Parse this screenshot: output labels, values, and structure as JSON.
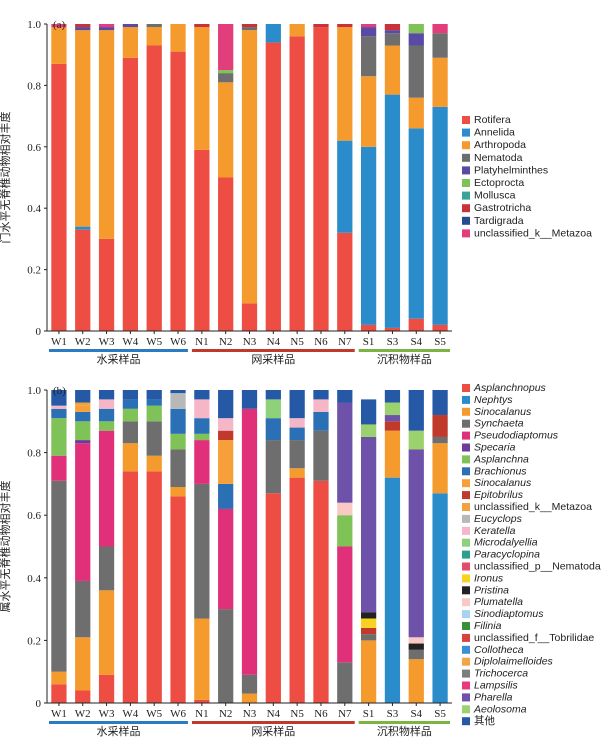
{
  "chart_data": [
    {
      "type": "bar",
      "stacked": true,
      "panel_label": "(a)",
      "ylabel": "门水平无脊椎动物相对丰度",
      "ylim": [
        0,
        1.0
      ],
      "yticks": [
        "0",
        "0.2",
        "0.4",
        "0.6",
        "0.8",
        "1.0"
      ],
      "categories": [
        "W1",
        "W2",
        "W3",
        "W4",
        "W5",
        "W6",
        "N1",
        "N2",
        "N3",
        "N4",
        "N5",
        "N6",
        "N7",
        "S1",
        "S3",
        "S4",
        "S5"
      ],
      "groups": [
        {
          "label": "水采样品",
          "color": "#2a7bbf",
          "span": [
            0,
            5
          ]
        },
        {
          "label": "网采样品",
          "color": "#c0392b",
          "span": [
            6,
            12
          ]
        },
        {
          "label": "沉积物样品",
          "color": "#7cb342",
          "span": [
            13,
            16
          ]
        }
      ],
      "series": [
        {
          "name": "Rotifera",
          "color": "#ee4d43",
          "values": [
            0.87,
            0.33,
            0.3,
            0.89,
            0.93,
            0.91,
            0.59,
            0.5,
            0.09,
            0.94,
            0.96,
            0.99,
            0.32,
            0.02,
            0.01,
            0.04,
            0.02
          ]
        },
        {
          "name": "Annelida",
          "color": "#2b8ccc",
          "values": [
            0.0,
            0.01,
            0.0,
            0.0,
            0.0,
            0.0,
            0.0,
            0.0,
            0.0,
            0.06,
            0.0,
            0.0,
            0.3,
            0.58,
            0.76,
            0.62,
            0.71
          ]
        },
        {
          "name": "Arthropoda",
          "color": "#f59a2c",
          "values": [
            0.12,
            0.64,
            0.68,
            0.1,
            0.06,
            0.09,
            0.4,
            0.31,
            0.89,
            0.0,
            0.04,
            0.0,
            0.37,
            0.23,
            0.16,
            0.1,
            0.16
          ]
        },
        {
          "name": "Nematoda",
          "color": "#6e6e6e",
          "values": [
            0.0,
            0.0,
            0.0,
            0.0,
            0.01,
            0.0,
            0.0,
            0.03,
            0.01,
            0.0,
            0.0,
            0.0,
            0.0,
            0.13,
            0.04,
            0.17,
            0.08
          ]
        },
        {
          "name": "Platyhelminthes",
          "color": "#5b4aa5",
          "values": [
            0.0,
            0.01,
            0.01,
            0.01,
            0.0,
            0.0,
            0.0,
            0.0,
            0.0,
            0.0,
            0.0,
            0.0,
            0.0,
            0.03,
            0.01,
            0.04,
            0.0
          ]
        },
        {
          "name": "Ectoprocta",
          "color": "#7fc257",
          "values": [
            0.0,
            0.0,
            0.0,
            0.0,
            0.0,
            0.0,
            0.0,
            0.01,
            0.0,
            0.0,
            0.0,
            0.0,
            0.0,
            0.0,
            0.0,
            0.03,
            0.0
          ]
        },
        {
          "name": "Mollusca",
          "color": "#3aa39a",
          "values": [
            0.0,
            0.0,
            0.0,
            0.0,
            0.0,
            0.0,
            0.0,
            0.0,
            0.0,
            0.0,
            0.0,
            0.0,
            0.0,
            0.0,
            0.0,
            0.0,
            0.0
          ]
        },
        {
          "name": "Gastrotricha",
          "color": "#c8333a",
          "values": [
            0.0,
            0.01,
            0.0,
            0.0,
            0.0,
            0.0,
            0.01,
            0.0,
            0.01,
            0.0,
            0.0,
            0.01,
            0.01,
            0.0,
            0.02,
            0.0,
            0.0
          ]
        },
        {
          "name": "Tardigrada",
          "color": "#244c8f",
          "values": [
            0.0,
            0.0,
            0.0,
            0.0,
            0.0,
            0.0,
            0.0,
            0.0,
            0.0,
            0.0,
            0.0,
            0.0,
            0.0,
            0.0,
            0.0,
            0.0,
            0.0
          ]
        },
        {
          "name": "unclassified_k__Metazoa",
          "color": "#e23e7b",
          "values": [
            0.01,
            0.0,
            0.01,
            0.0,
            0.0,
            0.0,
            0.0,
            0.15,
            0.0,
            0.0,
            0.0,
            0.0,
            0.0,
            0.01,
            0.0,
            0.0,
            0.03
          ]
        }
      ]
    },
    {
      "type": "bar",
      "stacked": true,
      "panel_label": "(b)",
      "ylabel": "属水平无脊椎动物相对丰度",
      "ylim": [
        0,
        1.0
      ],
      "yticks": [
        "0",
        "0.2",
        "0.4",
        "0.6",
        "0.8",
        "1.0"
      ],
      "categories": [
        "W1",
        "W2",
        "W3",
        "W4",
        "W5",
        "W6",
        "N1",
        "N2",
        "N3",
        "N4",
        "N5",
        "N6",
        "N7",
        "S1",
        "S3",
        "S4",
        "S5"
      ],
      "groups": [
        {
          "label": "水采样品",
          "color": "#2a7bbf",
          "span": [
            0,
            5
          ]
        },
        {
          "label": "网采样品",
          "color": "#c0392b",
          "span": [
            6,
            12
          ]
        },
        {
          "label": "沉积物样品",
          "color": "#7cb342",
          "span": [
            13,
            16
          ]
        }
      ],
      "series": [
        {
          "name": "Asplanchnopus",
          "italic": true,
          "color": "#ee4d43",
          "values": [
            0.06,
            0.04,
            0.09,
            0.74,
            0.74,
            0.66,
            0.01,
            0.0,
            0.0,
            0.67,
            0.72,
            0.71,
            0.0,
            0.0,
            0.0,
            0.0,
            0.0
          ]
        },
        {
          "name": "Nephtys",
          "italic": true,
          "color": "#2b8ccc",
          "values": [
            0.0,
            0.0,
            0.0,
            0.0,
            0.0,
            0.0,
            0.0,
            0.0,
            0.0,
            0.0,
            0.0,
            0.0,
            0.0,
            0.0,
            0.72,
            0.0,
            0.67
          ]
        },
        {
          "name": "Sinocalanus",
          "italic": true,
          "color": "#f59a2c",
          "values": [
            0.04,
            0.17,
            0.27,
            0.09,
            0.05,
            0.03,
            0.26,
            0.0,
            0.03,
            0.0,
            0.03,
            0.0,
            0.0,
            0.2,
            0.15,
            0.14,
            0.16
          ]
        },
        {
          "name": "Synchaeta",
          "italic": true,
          "color": "#6e6e6e",
          "values": [
            0.61,
            0.18,
            0.14,
            0.07,
            0.11,
            0.12,
            0.43,
            0.3,
            0.06,
            0.17,
            0.09,
            0.16,
            0.13,
            0.02,
            0.0,
            0.03,
            0.02
          ]
        },
        {
          "name": "Pseudodiaptomus",
          "italic": true,
          "color": "#e0307a",
          "values": [
            0.08,
            0.44,
            0.37,
            0.0,
            0.0,
            0.0,
            0.14,
            0.32,
            0.85,
            0.0,
            0.0,
            0.0,
            0.37,
            0.0,
            0.0,
            0.0,
            0.0
          ]
        },
        {
          "name": "Specaria",
          "italic": true,
          "color": "#6a3d9a",
          "values": [
            0.0,
            0.01,
            0.0,
            0.0,
            0.0,
            0.0,
            0.0,
            0.0,
            0.0,
            0.0,
            0.0,
            0.0,
            0.0,
            0.0,
            0.0,
            0.0,
            0.0
          ]
        },
        {
          "name": "Asplanchna",
          "italic": true,
          "color": "#7fc257",
          "values": [
            0.12,
            0.06,
            0.03,
            0.04,
            0.05,
            0.05,
            0.02,
            0.0,
            0.0,
            0.0,
            0.0,
            0.0,
            0.1,
            0.0,
            0.0,
            0.0,
            0.0
          ]
        },
        {
          "name": "Brachionus",
          "italic": true,
          "color": "#2b6fb5",
          "values": [
            0.03,
            0.03,
            0.04,
            0.03,
            0.02,
            0.08,
            0.05,
            0.08,
            0.0,
            0.07,
            0.04,
            0.06,
            0.0,
            0.0,
            0.0,
            0.0,
            0.0
          ]
        },
        {
          "name": "Sinocalanus",
          "italic": true,
          "color": "#f7a03a",
          "values": [
            0.0,
            0.02,
            0.0,
            0.0,
            0.0,
            0.0,
            0.0,
            0.14,
            0.0,
            0.0,
            0.0,
            0.0,
            0.0,
            0.0,
            0.0,
            0.0,
            0.0
          ]
        },
        {
          "name": "Epitobrilus",
          "italic": true,
          "color": "#c0392b",
          "values": [
            0.0,
            0.0,
            0.0,
            0.0,
            0.0,
            0.0,
            0.0,
            0.03,
            0.0,
            0.0,
            0.0,
            0.0,
            0.0,
            0.02,
            0.03,
            0.0,
            0.07
          ]
        },
        {
          "name": "unclassified_k__Metazoa",
          "italic": false,
          "color": "#f0a33c",
          "values": [
            0.0,
            0.01,
            0.0,
            0.0,
            0.0,
            0.0,
            0.0,
            0.0,
            0.0,
            0.0,
            0.0,
            0.0,
            0.0,
            0.0,
            0.0,
            0.0,
            0.0
          ]
        },
        {
          "name": "Eucyclops",
          "italic": true,
          "color": "#b8b8b8",
          "values": [
            0.0,
            0.0,
            0.0,
            0.0,
            0.0,
            0.05,
            0.0,
            0.0,
            0.0,
            0.0,
            0.0,
            0.0,
            0.0,
            0.0,
            0.0,
            0.0,
            0.0
          ]
        },
        {
          "name": "Keratella",
          "italic": true,
          "color": "#f5b6c8",
          "values": [
            0.01,
            0.0,
            0.03,
            0.0,
            0.0,
            0.0,
            0.06,
            0.04,
            0.0,
            0.0,
            0.03,
            0.04,
            0.0,
            0.0,
            0.0,
            0.0,
            0.0
          ]
        },
        {
          "name": "Microdalyellia",
          "italic": true,
          "color": "#8fd17a",
          "values": [
            0.0,
            0.0,
            0.0,
            0.0,
            0.0,
            0.0,
            0.0,
            0.0,
            0.0,
            0.06,
            0.0,
            0.0,
            0.0,
            0.0,
            0.0,
            0.0,
            0.0
          ]
        },
        {
          "name": "Paracyclopina",
          "italic": true,
          "color": "#2aa08a",
          "values": [
            0.0,
            0.0,
            0.0,
            0.0,
            0.0,
            0.0,
            0.0,
            0.0,
            0.0,
            0.0,
            0.0,
            0.0,
            0.0,
            0.0,
            0.0,
            0.0,
            0.0
          ]
        },
        {
          "name": "unclassified_p__Nematoda",
          "italic": false,
          "color": "#e24e6a",
          "values": [
            0.0,
            0.0,
            0.0,
            0.0,
            0.0,
            0.0,
            0.0,
            0.0,
            0.0,
            0.0,
            0.0,
            0.0,
            0.0,
            0.0,
            0.0,
            0.0,
            0.0
          ]
        },
        {
          "name": "Ironus",
          "italic": true,
          "color": "#f7d21e",
          "values": [
            0.0,
            0.0,
            0.0,
            0.0,
            0.0,
            0.0,
            0.0,
            0.0,
            0.0,
            0.0,
            0.0,
            0.0,
            0.0,
            0.03,
            0.0,
            0.0,
            0.0
          ]
        },
        {
          "name": "Pristina",
          "italic": true,
          "color": "#222222",
          "values": [
            0.0,
            0.0,
            0.0,
            0.0,
            0.0,
            0.0,
            0.0,
            0.0,
            0.0,
            0.0,
            0.0,
            0.0,
            0.0,
            0.02,
            0.0,
            0.02,
            0.0
          ]
        },
        {
          "name": "Plumatella",
          "italic": true,
          "color": "#f9c9c4",
          "values": [
            0.0,
            0.0,
            0.0,
            0.0,
            0.0,
            0.0,
            0.0,
            0.0,
            0.0,
            0.0,
            0.0,
            0.0,
            0.04,
            0.0,
            0.0,
            0.02,
            0.0
          ]
        },
        {
          "name": "Sinodiaptomus",
          "italic": true,
          "color": "#a7d3f0",
          "values": [
            0.0,
            0.0,
            0.0,
            0.0,
            0.0,
            0.0,
            0.0,
            0.0,
            0.0,
            0.0,
            0.0,
            0.0,
            0.0,
            0.0,
            0.0,
            0.0,
            0.0
          ]
        },
        {
          "name": "Filinia",
          "italic": true,
          "color": "#3a8f3a",
          "values": [
            0.0,
            0.0,
            0.0,
            0.0,
            0.0,
            0.0,
            0.0,
            0.0,
            0.0,
            0.0,
            0.0,
            0.0,
            0.0,
            0.0,
            0.0,
            0.0,
            0.0
          ]
        },
        {
          "name": "unclassified_f__Tobrilidae",
          "italic": false,
          "color": "#d8433b",
          "values": [
            0.0,
            0.0,
            0.0,
            0.0,
            0.0,
            0.0,
            0.0,
            0.0,
            0.0,
            0.0,
            0.0,
            0.0,
            0.0,
            0.0,
            0.0,
            0.0,
            0.0
          ]
        },
        {
          "name": "Collotheca",
          "italic": true,
          "color": "#3d8fd1",
          "values": [
            0.0,
            0.0,
            0.0,
            0.0,
            0.0,
            0.0,
            0.0,
            0.0,
            0.0,
            0.0,
            0.0,
            0.0,
            0.0,
            0.0,
            0.0,
            0.0,
            0.0
          ]
        },
        {
          "name": "Diplolaimelloides",
          "italic": true,
          "color": "#f2a447",
          "values": [
            0.0,
            0.0,
            0.0,
            0.0,
            0.0,
            0.0,
            0.0,
            0.0,
            0.0,
            0.0,
            0.0,
            0.0,
            0.0,
            0.0,
            0.0,
            0.0,
            0.0
          ]
        },
        {
          "name": "Trichocerca",
          "italic": true,
          "color": "#7d7d7d",
          "values": [
            0.0,
            0.0,
            0.0,
            0.0,
            0.0,
            0.0,
            0.0,
            0.0,
            0.0,
            0.0,
            0.0,
            0.0,
            0.0,
            0.0,
            0.0,
            0.0,
            0.0
          ]
        },
        {
          "name": "Lampsilis",
          "italic": true,
          "color": "#e8387f",
          "values": [
            0.0,
            0.0,
            0.0,
            0.0,
            0.0,
            0.0,
            0.0,
            0.0,
            0.0,
            0.0,
            0.0,
            0.0,
            0.0,
            0.0,
            0.0,
            0.0,
            0.0
          ]
        },
        {
          "name": "Pharella",
          "italic": true,
          "color": "#6e51a8",
          "values": [
            0.0,
            0.0,
            0.0,
            0.0,
            0.0,
            0.0,
            0.0,
            0.0,
            0.0,
            0.0,
            0.0,
            0.0,
            0.32,
            0.56,
            0.02,
            0.6,
            0.0
          ]
        },
        {
          "name": "Aeolosoma",
          "italic": true,
          "color": "#9bd16e",
          "values": [
            0.0,
            0.0,
            0.0,
            0.0,
            0.0,
            0.0,
            0.0,
            0.0,
            0.0,
            0.0,
            0.0,
            0.0,
            0.0,
            0.04,
            0.04,
            0.06,
            0.0
          ]
        },
        {
          "name": "其他",
          "italic": false,
          "color": "#2559a6",
          "values": [
            0.05,
            0.04,
            0.03,
            0.03,
            0.03,
            0.01,
            0.03,
            0.09,
            0.06,
            0.03,
            0.09,
            0.03,
            0.04,
            0.08,
            0.04,
            0.13,
            0.08
          ]
        }
      ]
    }
  ]
}
